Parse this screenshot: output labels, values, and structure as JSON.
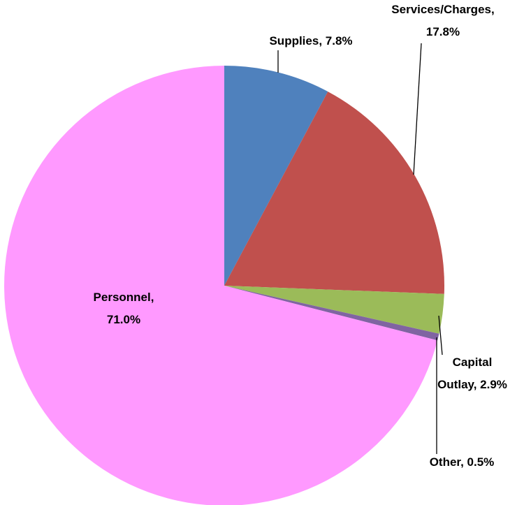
{
  "chart_data": {
    "type": "pie",
    "values": [
      7.8,
      17.8,
      2.9,
      0.5,
      71.0
    ],
    "value_labels": [
      "Supplies, 7.8%",
      "Services/Charges, 17.8%",
      "Capital Outlay, 2.9%",
      "Other, 0.5%",
      "Personnel, 71.0%"
    ],
    "colors": [
      "#4f81bd",
      "#c0504d",
      "#9bbb59",
      "#8064a2",
      "#ff99ff"
    ]
  }
}
